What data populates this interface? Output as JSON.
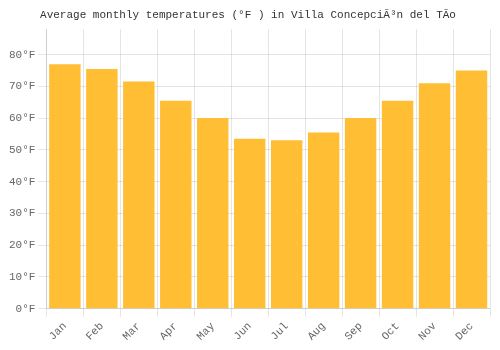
{
  "chart_data": {
    "type": "bar",
    "title": "Average monthly temperatures (°F ) in Villa ConcepciÃ³n del TÃ­o",
    "categories": [
      "Jan",
      "Feb",
      "Mar",
      "Apr",
      "May",
      "Jun",
      "Jul",
      "Aug",
      "Sep",
      "Oct",
      "Nov",
      "Dec"
    ],
    "values": [
      77,
      75.5,
      71.5,
      65.5,
      60,
      53.5,
      53,
      55.5,
      60,
      65.5,
      71,
      75
    ],
    "color": "#FFBE33",
    "ylim": [
      0,
      88
    ],
    "yticks": [
      {
        "value": 0,
        "label": "0°F"
      },
      {
        "value": 10,
        "label": "10°F"
      },
      {
        "value": 20,
        "label": "20°F"
      },
      {
        "value": 30,
        "label": "30°F"
      },
      {
        "value": 40,
        "label": "40°F"
      },
      {
        "value": 50,
        "label": "50°F"
      },
      {
        "value": 60,
        "label": "60°F"
      },
      {
        "value": 70,
        "label": "70°F"
      },
      {
        "value": 80,
        "label": "80°F"
      }
    ],
    "grid": true
  }
}
